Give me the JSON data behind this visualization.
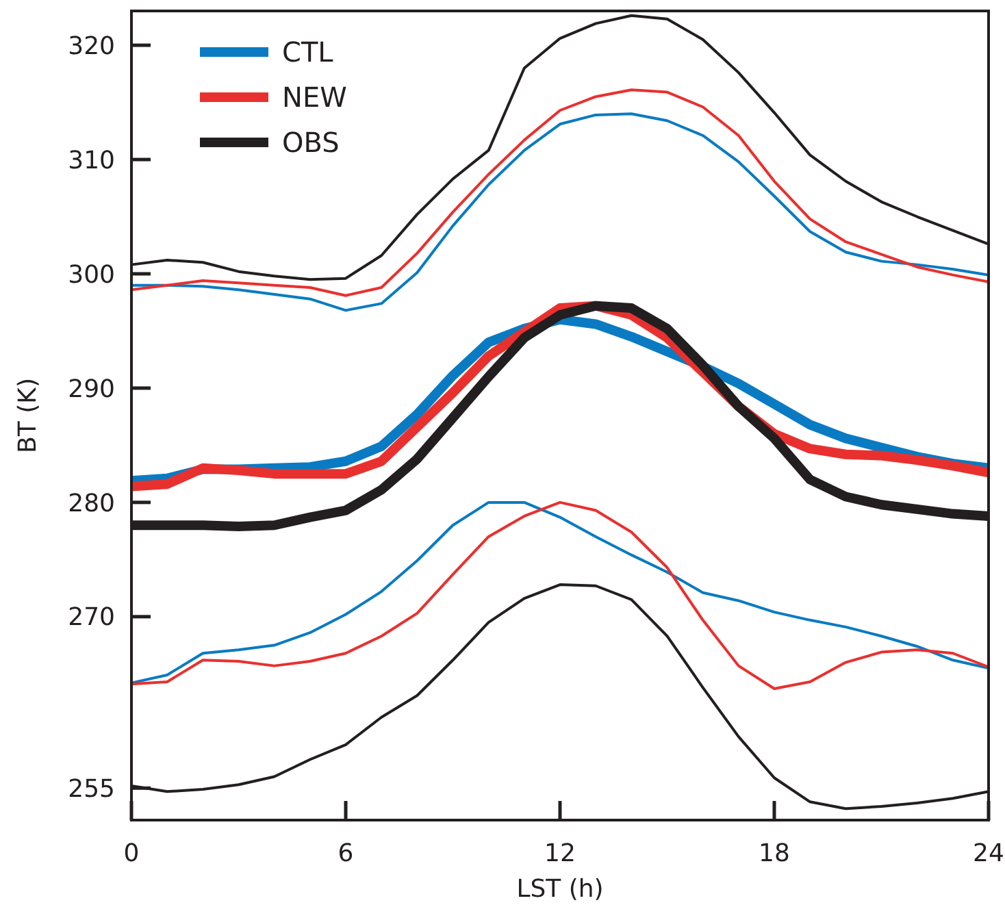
{
  "chart_data": {
    "type": "line",
    "xlabel": "LST (h)",
    "ylabel": "BT (K)",
    "x": [
      0,
      1,
      2,
      3,
      4,
      5,
      6,
      7,
      8,
      9,
      10,
      11,
      12,
      13,
      14,
      15,
      16,
      17,
      18,
      19,
      20,
      21,
      22,
      23,
      24
    ],
    "xlim": [
      0,
      24
    ],
    "xticks": [
      0,
      6,
      12,
      18,
      24
    ],
    "ylim": [
      252.2,
      323
    ],
    "yticks": [
      255,
      270,
      280,
      290,
      300,
      310,
      320
    ],
    "grid": false,
    "legend": "top left",
    "marker": "none",
    "line_style": "solid",
    "series": [
      {
        "color": "#0a7bc2",
        "values": [
          299,
          299,
          298.9,
          298.6,
          298.2,
          297.8,
          296.8,
          297.4,
          300.1,
          304.2,
          307.8,
          310.8,
          313.1,
          313.9,
          314,
          313.4,
          312.1,
          309.8,
          306.8,
          303.7,
          301.9,
          301.1,
          300.8,
          300.4,
          299.9
        ]
      },
      {
        "color": "#e8312f",
        "values": [
          298.6,
          299,
          299.4,
          299.2,
          299,
          298.8,
          298.1,
          298.8,
          301.8,
          305.4,
          308.7,
          311.7,
          314.3,
          315.5,
          316.1,
          315.9,
          314.6,
          312.1,
          308.1,
          304.8,
          302.8,
          301.7,
          300.6,
          299.9,
          299.3
        ]
      },
      {
        "color": "#231f20",
        "values": [
          300.8,
          301.2,
          301,
          300.2,
          299.8,
          299.5,
          299.6,
          301.6,
          305.2,
          308.3,
          310.8,
          318,
          320.6,
          321.9,
          322.6,
          322.3,
          320.5,
          317.6,
          314.1,
          310.4,
          308.1,
          306.3,
          305,
          303.8,
          302.6
        ]
      },
      {
        "color": "#0a7bc2",
        "values": [
          264.2,
          264.9,
          266.8,
          267.1,
          267.5,
          268.6,
          270.2,
          272.2,
          274.9,
          278,
          280,
          280,
          278.7,
          277,
          275.4,
          273.9,
          272.1,
          271.4,
          270.4,
          269.7,
          269.1,
          268.3,
          267.4,
          266.2,
          265.5
        ]
      },
      {
        "color": "#e8312f",
        "values": [
          264.1,
          264.3,
          266.2,
          266.1,
          265.7,
          266.1,
          266.8,
          268.3,
          270.3,
          273.7,
          277,
          278.8,
          280,
          279.3,
          277.4,
          274.3,
          269.7,
          265.7,
          263.7,
          264.3,
          266,
          266.9,
          267.1,
          266.8,
          265.6
        ]
      },
      {
        "color": "#231f20",
        "values": [
          255.2,
          254.7,
          254.9,
          255.3,
          256,
          257.5,
          258.8,
          261.2,
          263.1,
          266.2,
          269.5,
          271.6,
          272.8,
          272.7,
          271.5,
          268.3,
          263.8,
          259.5,
          255.9,
          253.8,
          253.2,
          253.4,
          253.7,
          254.1,
          254.7
        ]
      },
      {
        "name": "CTL",
        "color": "#0a7bc2",
        "values": [
          281.9,
          282.1,
          282.9,
          282.9,
          283,
          283.1,
          283.6,
          284.9,
          287.7,
          291.1,
          294,
          295.2,
          296,
          295.6,
          294.5,
          293.2,
          291.9,
          290.4,
          288.6,
          286.8,
          285.6,
          284.8,
          284,
          283.4,
          283
        ]
      },
      {
        "name": "NEW",
        "color": "#e8312f",
        "values": [
          281.4,
          281.6,
          283,
          282.8,
          282.5,
          282.5,
          282.5,
          283.6,
          286.6,
          289.6,
          292.8,
          294.9,
          297,
          297.2,
          296.4,
          294.4,
          291.4,
          288.4,
          286,
          284.7,
          284.2,
          284.1,
          283.7,
          283.2,
          282.6
        ]
      },
      {
        "name": "OBS",
        "color": "#231f20",
        "values": [
          278,
          278,
          278,
          277.9,
          278,
          278.7,
          279.3,
          281.1,
          283.8,
          287.4,
          291,
          294.4,
          296.4,
          297.2,
          297,
          295.2,
          292,
          288.4,
          285.6,
          282,
          280.5,
          279.8,
          279.4,
          279,
          278.8
        ]
      }
    ]
  }
}
